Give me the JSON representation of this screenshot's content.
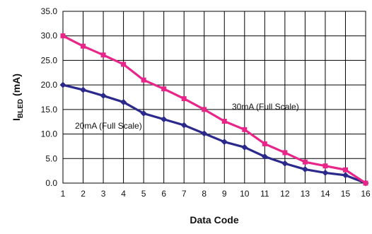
{
  "chart_data": {
    "type": "line",
    "title": "",
    "xlabel": "Data Code",
    "ylabel": {
      "main": "I",
      "sub": "BLED",
      "rest": " (mA)"
    },
    "x": [
      1,
      2,
      3,
      4,
      5,
      6,
      7,
      8,
      9,
      10,
      11,
      12,
      13,
      14,
      15,
      16
    ],
    "xlim": [
      1,
      16
    ],
    "ylim": [
      0,
      35
    ],
    "yticks": [
      "0.0",
      "5.0",
      "10.0",
      "15.0",
      "20.0",
      "25.0",
      "30.0",
      "35.0"
    ],
    "ytick_values": [
      0,
      5,
      10,
      15,
      20,
      25,
      30,
      35
    ],
    "grid": true,
    "legend": "none",
    "series": [
      {
        "label": "20mA (Full Scale)",
        "color": "#2b2a8c",
        "marker": "diamond",
        "values": [
          20.0,
          19.0,
          17.8,
          16.5,
          14.2,
          13.0,
          11.8,
          10.1,
          8.4,
          7.3,
          5.4,
          4.0,
          2.8,
          2.1,
          1.6,
          0.0
        ]
      },
      {
        "label": "30mA (Full Scale)",
        "color": "#e8268a",
        "marker": "square",
        "values": [
          30.0,
          27.9,
          26.1,
          24.2,
          21.0,
          19.2,
          17.2,
          15.0,
          12.6,
          10.9,
          8.0,
          6.2,
          4.3,
          3.5,
          2.7,
          0.0
        ]
      }
    ]
  }
}
